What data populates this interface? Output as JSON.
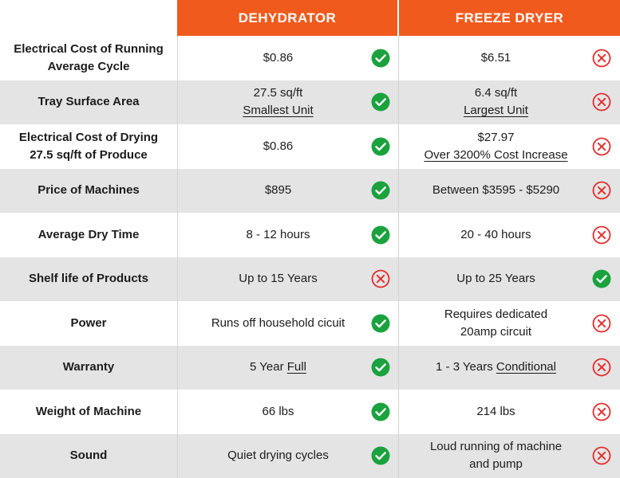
{
  "header": {
    "col1": "DEHYDRATOR",
    "col2": "FREEZE DRYER"
  },
  "colors": {
    "header_bg": "#f15a1d",
    "check": "#1ba23e",
    "cross": "#e52b2b",
    "alt_row": "#e4e4e5"
  },
  "rows": [
    {
      "label": [
        "Electrical Cost of Running",
        "Average Cycle"
      ],
      "dehydrator": {
        "lines": [
          "$0.86"
        ],
        "underline": [],
        "icon": "check-icon"
      },
      "freeze": {
        "lines": [
          "$6.51"
        ],
        "underline": [],
        "icon": "cross-icon"
      }
    },
    {
      "label": [
        "Tray Surface Area"
      ],
      "dehydrator": {
        "lines": [
          "27.5 sq/ft",
          "Smallest Unit"
        ],
        "underline": [
          1
        ],
        "icon": "check-icon"
      },
      "freeze": {
        "lines": [
          "6.4 sq/ft",
          "Largest Unit"
        ],
        "underline": [
          1
        ],
        "icon": "cross-icon"
      }
    },
    {
      "label": [
        "Electrical Cost of Drying",
        "27.5 sq/ft of Produce"
      ],
      "dehydrator": {
        "lines": [
          "$0.86"
        ],
        "underline": [],
        "icon": "check-icon"
      },
      "freeze": {
        "lines": [
          "$27.97",
          "Over 3200% Cost Increase"
        ],
        "underline": [
          1
        ],
        "icon": "cross-icon"
      }
    },
    {
      "label": [
        "Price of Machines"
      ],
      "dehydrator": {
        "lines": [
          "$895"
        ],
        "underline": [],
        "icon": "check-icon"
      },
      "freeze": {
        "lines": [
          "Between $3595 - $5290"
        ],
        "underline": [],
        "icon": "cross-icon"
      }
    },
    {
      "label": [
        "Average Dry Time"
      ],
      "dehydrator": {
        "lines": [
          "8 - 12 hours"
        ],
        "underline": [],
        "icon": "check-icon"
      },
      "freeze": {
        "lines": [
          "20 - 40 hours"
        ],
        "underline": [],
        "icon": "cross-icon"
      }
    },
    {
      "label": [
        "Shelf life of Products"
      ],
      "dehydrator": {
        "lines": [
          "Up to 15 Years"
        ],
        "underline": [],
        "icon": "cross-icon"
      },
      "freeze": {
        "lines": [
          "Up to 25 Years"
        ],
        "underline": [],
        "icon": "check-icon"
      }
    },
    {
      "label": [
        "Power"
      ],
      "dehydrator": {
        "lines": [
          "Runs off household cicuit"
        ],
        "underline": [],
        "icon": "check-icon"
      },
      "freeze": {
        "lines": [
          "Requires dedicated",
          "20amp circuit"
        ],
        "underline": [],
        "icon": "cross-icon"
      }
    },
    {
      "label": [
        "Warranty"
      ],
      "dehydrator": {
        "lines": [
          "5 Year ",
          "Full"
        ],
        "underline": [
          1
        ],
        "inline": true,
        "icon": "check-icon"
      },
      "freeze": {
        "lines": [
          "1 - 3 Years ",
          "Conditional"
        ],
        "underline": [
          1
        ],
        "inline": true,
        "icon": "cross-icon"
      }
    },
    {
      "label": [
        "Weight of Machine"
      ],
      "dehydrator": {
        "lines": [
          "66 lbs"
        ],
        "underline": [],
        "icon": "check-icon"
      },
      "freeze": {
        "lines": [
          "214 lbs"
        ],
        "underline": [],
        "icon": "cross-icon"
      }
    },
    {
      "label": [
        "Sound"
      ],
      "dehydrator": {
        "lines": [
          "Quiet drying cycles"
        ],
        "underline": [],
        "icon": "check-icon"
      },
      "freeze": {
        "lines": [
          "Loud running of machine",
          "and pump"
        ],
        "underline": [],
        "icon": "cross-icon"
      }
    }
  ]
}
